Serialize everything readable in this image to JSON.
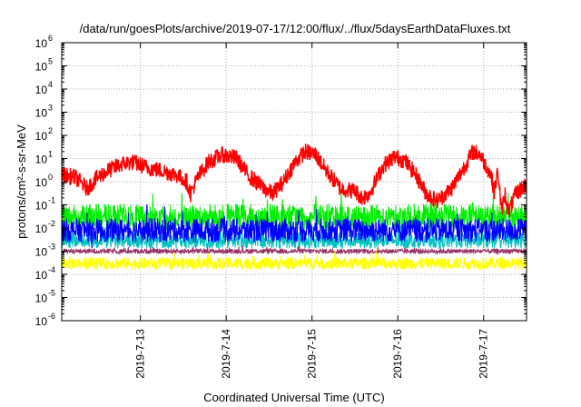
{
  "chart_data": {
    "type": "line",
    "title": "/data/run/goesPlots/archive/2019-07-17/12:00/flux/../flux/5daysEarthDataFluxes.txt",
    "xlabel": "Coordinated Universal Time (UTC)",
    "ylabel": "protons/cm²-s-sr-MeV",
    "yscale": "log",
    "ylim": [
      "1e-6",
      "1e6"
    ],
    "xlim": [
      "2019-07-12 02:00",
      "2019-07-17 12:00"
    ],
    "x_ticks": [
      "2019-7-13",
      "2019-7-14",
      "2019-7-15",
      "2019-7-16",
      "2019-7-17"
    ],
    "y_ticks": [
      {
        "base": "10",
        "exp": "6"
      },
      {
        "base": "10",
        "exp": "5"
      },
      {
        "base": "10",
        "exp": "4"
      },
      {
        "base": "10",
        "exp": "3"
      },
      {
        "base": "10",
        "exp": "2"
      },
      {
        "base": "10",
        "exp": "1"
      },
      {
        "base": "10",
        "exp": "0"
      },
      {
        "base": "10",
        "exp": "-1"
      },
      {
        "base": "10",
        "exp": "-2"
      },
      {
        "base": "10",
        "exp": "-3"
      },
      {
        "base": "10",
        "exp": "-4"
      },
      {
        "base": "10",
        "exp": "-5"
      },
      {
        "base": "10",
        "exp": "-6"
      }
    ],
    "grid": true,
    "legend": "none",
    "series": [
      {
        "color": "#ff0000",
        "points": [
          [
            "2019-07-12 02:00",
            2.0
          ],
          [
            "2019-07-12 06:00",
            1.5
          ],
          [
            "2019-07-12 09:00",
            0.5
          ],
          [
            "2019-07-12 12:00",
            1.5
          ],
          [
            "2019-07-12 15:00",
            3.0
          ],
          [
            "2019-07-12 19:00",
            6.0
          ],
          [
            "2019-07-12 22:00",
            7.0
          ],
          [
            "2019-07-13 02:00",
            4.0
          ],
          [
            "2019-07-13 06:00",
            3.0
          ],
          [
            "2019-07-13 10:00",
            2.0
          ],
          [
            "2019-07-13 13:00",
            1.0
          ],
          [
            "2019-07-13 14:00",
            0.3
          ],
          [
            "2019-07-13 16:00",
            1.5
          ],
          [
            "2019-07-13 19:00",
            7.0
          ],
          [
            "2019-07-13 23:00",
            15.0
          ],
          [
            "2019-07-14 03:00",
            10.0
          ],
          [
            "2019-07-14 06:00",
            2.0
          ],
          [
            "2019-07-14 10:00",
            0.6
          ],
          [
            "2019-07-14 13:00",
            0.3
          ],
          [
            "2019-07-14 16:00",
            1.0
          ],
          [
            "2019-07-14 19:00",
            6.0
          ],
          [
            "2019-07-14 22:00",
            20.0
          ],
          [
            "2019-07-15 01:00",
            15.0
          ],
          [
            "2019-07-15 04:00",
            3.0
          ],
          [
            "2019-07-15 08:00",
            0.5
          ],
          [
            "2019-07-15 12:00",
            0.4
          ],
          [
            "2019-07-15 14:00",
            0.2
          ],
          [
            "2019-07-15 16:00",
            0.3
          ],
          [
            "2019-07-15 20:00",
            5.0
          ],
          [
            "2019-07-15 23:00",
            12.0
          ],
          [
            "2019-07-16 02:00",
            8.0
          ],
          [
            "2019-07-16 05:00",
            2.0
          ],
          [
            "2019-07-16 08:00",
            0.3
          ],
          [
            "2019-07-16 11:00",
            0.15
          ],
          [
            "2019-07-16 15:00",
            0.5
          ],
          [
            "2019-07-16 18:00",
            3.0
          ],
          [
            "2019-07-16 21:00",
            20.0
          ],
          [
            "2019-07-16 23:00",
            15.0
          ],
          [
            "2019-07-17 02:00",
            2.0
          ],
          [
            "2019-07-17 03:00",
            0.4
          ],
          [
            "2019-07-17 04:00",
            3.0
          ],
          [
            "2019-07-17 05:00",
            0.05
          ],
          [
            "2019-07-17 06:00",
            0.3
          ],
          [
            "2019-07-17 07:00",
            0.05
          ],
          [
            "2019-07-17 09:00",
            0.3
          ],
          [
            "2019-07-17 12:00",
            0.8
          ]
        ]
      },
      {
        "color": "#00ee00",
        "points": [
          [
            "2019-07-12 02:00",
            0.03
          ],
          [
            "2019-07-17 12:00",
            0.03
          ]
        ]
      },
      {
        "color": "#00c0c0",
        "points": [
          [
            "2019-07-12 02:00",
            0.003
          ],
          [
            "2019-07-17 12:00",
            0.003
          ]
        ]
      },
      {
        "color": "#0000ff",
        "points": [
          [
            "2019-07-12 02:00",
            0.008
          ],
          [
            "2019-07-17 12:00",
            0.008
          ]
        ]
      },
      {
        "color": "#993366",
        "points": [
          [
            "2019-07-12 02:00",
            0.001
          ],
          [
            "2019-07-17 12:00",
            0.001
          ]
        ]
      },
      {
        "color": "#ffff00",
        "points": [
          [
            "2019-07-12 02:00",
            0.0003
          ],
          [
            "2019-07-17 12:00",
            0.0003
          ]
        ]
      }
    ]
  }
}
